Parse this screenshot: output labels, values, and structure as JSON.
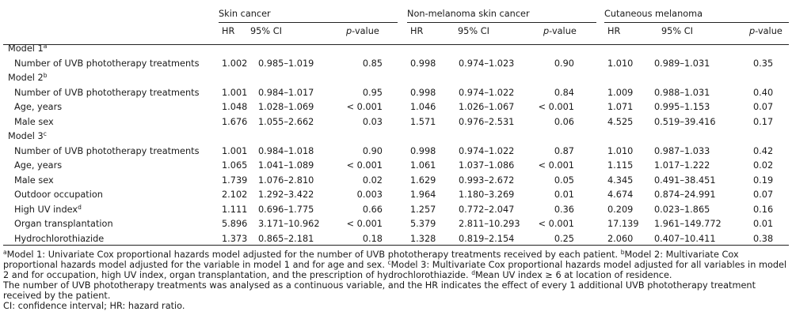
{
  "groups": [
    "Skin cancer",
    "Non-melanoma skin cancer",
    "Cutaneous melanoma"
  ],
  "cols": {
    "hr": "HR",
    "ci": "95% CI",
    "p": "p-value"
  },
  "rows": [
    {
      "type": "model",
      "label": "Model 1",
      "sup": "a"
    },
    {
      "type": "data",
      "label": "Number of UVB phototherapy treatments",
      "v": [
        "1.002",
        "0.985–1.019",
        "0.85",
        "0.998",
        "0.974–1.023",
        "0.90",
        "1.010",
        "0.989–1.031",
        "0.35"
      ]
    },
    {
      "type": "model",
      "label": "Model 2",
      "sup": "b"
    },
    {
      "type": "data",
      "label": "Number of UVB phototherapy treatments",
      "v": [
        "1.001",
        "0.984–1.017",
        "0.95",
        "0.998",
        "0.974–1.022",
        "0.84",
        "1.009",
        "0.988–1.031",
        "0.40"
      ]
    },
    {
      "type": "data",
      "label": "Age, years",
      "v": [
        "1.048",
        "1.028–1.069",
        "< 0.001",
        "1.046",
        "1.026–1.067",
        "< 0.001",
        "1.071",
        "0.995–1.153",
        "0.07"
      ]
    },
    {
      "type": "data",
      "label": "Male sex",
      "v": [
        "1.676",
        "1.055–2.662",
        "0.03",
        "1.571",
        "0.976–2.531",
        "0.06",
        "4.525",
        "0.519–39.416",
        "0.17"
      ]
    },
    {
      "type": "model",
      "label": "Model 3",
      "sup": "c"
    },
    {
      "type": "data",
      "label": "Number of UVB phototherapy treatments",
      "v": [
        "1.001",
        "0.984–1.018",
        "0.90",
        "0.998",
        "0.974–1.022",
        "0.87",
        "1.010",
        "0.987–1.033",
        "0.42"
      ]
    },
    {
      "type": "data",
      "label": "Age, years",
      "v": [
        "1.065",
        "1.041–1.089",
        "< 0.001",
        "1.061",
        "1.037–1.086",
        "< 0.001",
        "1.115",
        "1.017–1.222",
        "0.02"
      ]
    },
    {
      "type": "data",
      "label": "Male sex",
      "v": [
        "1.739",
        "1.076–2.810",
        "0.02",
        "1.629",
        "0.993–2.672",
        "0.05",
        "4.345",
        "0.491–38.451",
        "0.19"
      ]
    },
    {
      "type": "data",
      "label": "Outdoor occupation",
      "v": [
        "2.102",
        "1.292–3.422",
        "0.003",
        "1.964",
        "1.180–3.269",
        "0.01",
        "4.674",
        "0.874–24.991",
        "0.07"
      ]
    },
    {
      "type": "data",
      "label": "High UV index",
      "sup": "d",
      "v": [
        "1.111",
        "0.696–1.775",
        "0.66",
        "1.257",
        "0.772–2.047",
        "0.36",
        "0.209",
        "0.023–1.865",
        "0.16"
      ]
    },
    {
      "type": "data",
      "label": "Organ transplantation",
      "v": [
        "5.896",
        "3.171–10.962",
        "< 0.001",
        "5.379",
        "2.811–10.293",
        "< 0.001",
        "17.139",
        "1.961–149.772",
        "0.01"
      ]
    },
    {
      "type": "data",
      "label": "Hydrochlorothiazide",
      "v": [
        "1.373",
        "0.865–2.181",
        "0.18",
        "1.328",
        "0.819–2.154",
        "0.25",
        "2.060",
        "0.407–10.411",
        "0.38"
      ]
    }
  ],
  "footnotes": {
    "a_mark": "a",
    "a_text": "Model 1: Univariate Cox proportional hazards model adjusted for the number of UVB phototherapy treatments received by each patient.",
    "b_mark": "b",
    "b_text": "Model 2: Multivariate Cox proportional hazards model adjusted for the variable in model 1 and for age and sex.",
    "c_mark": "c",
    "c_text": "Model 3: Multivariate Cox proportional hazards model adjusted for all variables in model 2 and for occupation, high UV index, organ transplantation, and the prescription of hydrochlorothiazide.",
    "d_mark": "d",
    "d_text": "Mean UV index ≥ 6 at location of residence.",
    "line2": "The number of UVB phototherapy treatments was analysed as a continuous variable, and the HR indicates the effect of every 1 additional UVB phototherapy treatment received by the patient.",
    "line3": "CI: confidence interval; HR: hazard ratio."
  }
}
